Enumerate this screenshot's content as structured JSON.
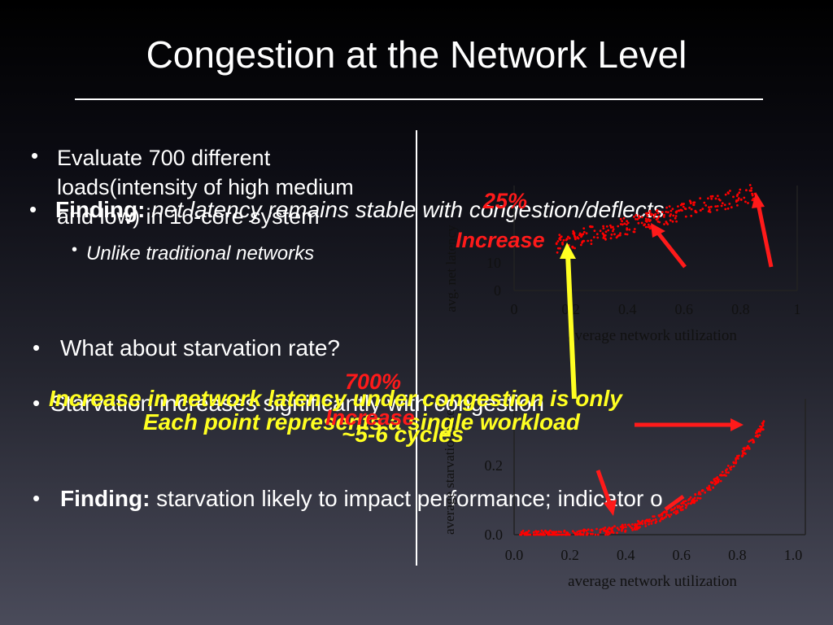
{
  "slide": {
    "title": "Congestion at the Network Level",
    "bullet_glyph": "•"
  },
  "left": {
    "bullet1": "Evaluate 700 different loads(intensity of high medium and low) in 16-core system",
    "finding1_label": "Finding:",
    "finding1_text": " net latency remains stable with congestion/deflects",
    "finding1_sub": "Unlike traditional networks",
    "question": "What about starvation rate?",
    "starvation_text": "Starvation increases significantly with congestion",
    "finding2_label": "Finding:",
    "finding2_text": " starvation likely to impact performance; indicator o"
  },
  "annotations": {
    "top_pct": "25%",
    "top_increase": "Increase",
    "mid_pct": "700%",
    "mid_increase": "Increase",
    "yellow_line1": "Increase in network latency under congestion is only",
    "yellow_line2": "~5-6  cycles",
    "yellow_overlay": "Each point represents a single workload"
  },
  "colors": {
    "annotation_red": "#ff1a1a",
    "annotation_yellow": "#ffff22",
    "points": "#ff0000"
  },
  "chart_data": [
    {
      "type": "scatter",
      "xlabel": "average network utilization",
      "ylabel": "avg. net latency",
      "x_ticks": [
        "0",
        "0.2",
        "0.4",
        "0.6",
        "0.8",
        "1"
      ],
      "y_ticks": [
        "0",
        "10"
      ],
      "xlim": [
        0,
        1
      ]
    },
    {
      "type": "scatter",
      "xlabel": "average network utilization",
      "ylabel": "average starvation rate",
      "x_ticks": [
        "0.0",
        "0.2",
        "0.4",
        "0.6",
        "0.8",
        "1.0"
      ],
      "y_ticks": [
        "0.0",
        "0.2"
      ],
      "xlim": [
        0,
        1
      ]
    }
  ]
}
